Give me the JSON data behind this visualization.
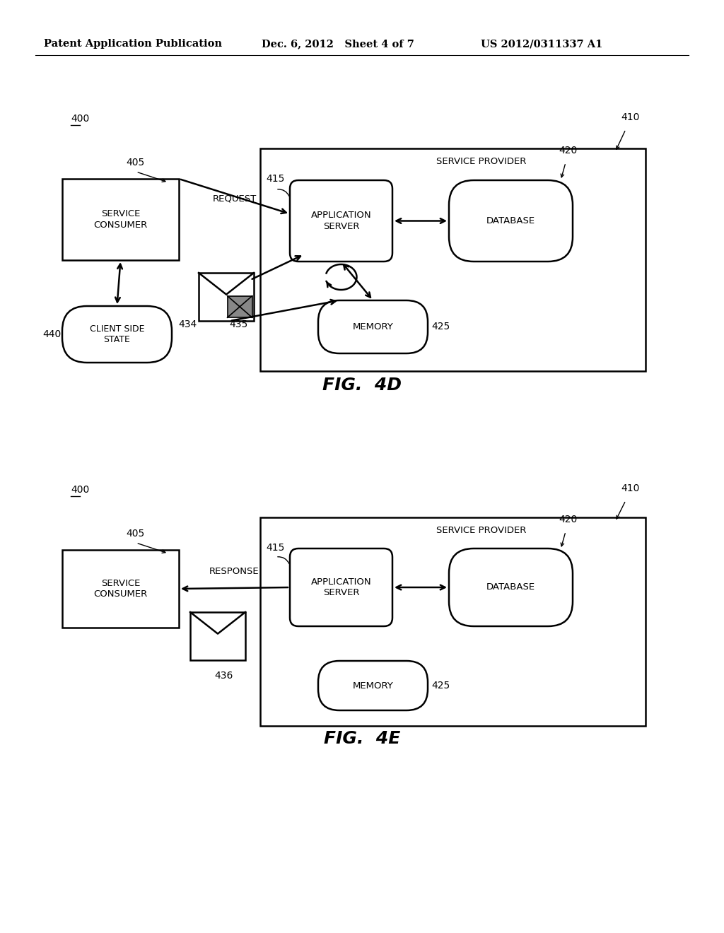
{
  "bg_color": "#ffffff",
  "header_left": "Patent Application Publication",
  "header_mid": "Dec. 6, 2012   Sheet 4 of 7",
  "header_right": "US 2012/0311337 A1",
  "fig4d_label": "FIG.  4D",
  "fig4e_label": "FIG.  4E",
  "label_400": "400",
  "label_410": "410",
  "label_405": "405",
  "label_415": "415",
  "label_420": "420",
  "label_425": "425",
  "label_440": "440",
  "label_434": "434",
  "label_435": "435",
  "label_436": "436",
  "text_service_consumer": "SERVICE\nCONSUMER",
  "text_application_server": "APPLICATION\nSERVER",
  "text_database": "DATABASE",
  "text_memory": "MEMORY",
  "text_client_side_state": "CLIENT SIDE\nSTATE",
  "text_service_provider": "SERVICE PROVIDER",
  "text_request": "REQUEST",
  "text_response": "RESPONSE"
}
